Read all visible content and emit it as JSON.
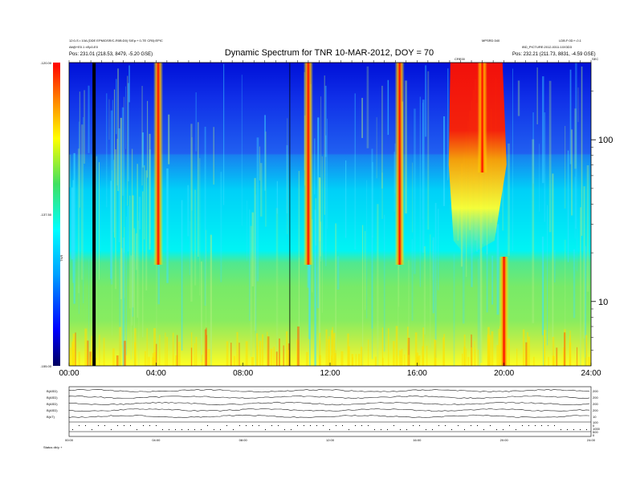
{
  "header": {
    "left_line1": "12:0-S • 10A (DDE EPM/DSR/C-R0B:D0) S/Ep:+ 0-TE CR0|:EPIC",
    "left_line2": "Alt@+E0.1 ±Ep0-E0",
    "left_line3": "Pos:    231.01 (218.53, 8479, -5.20 GSE)",
    "right_top1": "MPSRD:340",
    "right_top2": "LDB.F:0D:+-0.1",
    "right_line2": "IBD_PICTURE:2012-0311:10X3D3",
    "right_line3": "Pos:   232.21 (211.73, 8831, -4.59 GSE)",
    "marker_label": "CRE00",
    "corner_label": "SEC"
  },
  "chart_data": {
    "type": "heatmap",
    "title": "Dynamic Spectrum for TNR 10-MAR-2012, DOY = 70",
    "colorbar": {
      "label": "TNR",
      "ticks": [
        "-120.00",
        "-137.50",
        "-155.00"
      ],
      "range": [
        -155,
        -120
      ],
      "colors": [
        "#000060",
        "#0000ff",
        "#00a0ff",
        "#00ffff",
        "#40e060",
        "#ffff00",
        "#ff8000",
        "#ff0000"
      ]
    },
    "x": {
      "ticks": [
        "00:00",
        "04:00",
        "08:00",
        "12:00",
        "16:00",
        "20:00",
        "24:00"
      ],
      "range_hours": [
        0,
        24
      ]
    },
    "y": {
      "scale": "log",
      "range_khz": [
        4,
        300
      ],
      "ticks": [
        "100",
        "10"
      ],
      "tick_values": [
        100,
        10
      ]
    },
    "features": [
      {
        "type": "data_gap",
        "x_hours": 1.15
      },
      {
        "type": "marker_line",
        "x_hours": 10.15
      },
      {
        "type": "burst",
        "x_hours": 4.1
      },
      {
        "type": "burst",
        "x_hours": 11.0
      },
      {
        "type": "burst",
        "x_hours": 15.2
      },
      {
        "type": "burst",
        "x_hours": 17.9
      },
      {
        "type": "burst",
        "x_hours": 19.0
      },
      {
        "type": "burst",
        "x_hours": 20.0
      }
    ]
  },
  "bottom_panel": {
    "rows": [
      {
        "label": "B(ASD)",
        "right": "200"
      },
      {
        "label": "B(ASD)",
        "right": "200"
      },
      {
        "label": "B(ASD)",
        "right": "200"
      },
      {
        "label": "B(ASD)",
        "right": "200"
      },
      {
        "label": "B(nT)",
        "right": "10"
      }
    ],
    "right_extra": [
      "100",
      "0",
      "1000",
      "500",
      "0"
    ],
    "x_ticks": [
      "00:00",
      "04:00",
      "08:00",
      "12:00",
      "16:00",
      "20:00",
      "24:00"
    ],
    "footer_label": "Status   db/y +"
  }
}
